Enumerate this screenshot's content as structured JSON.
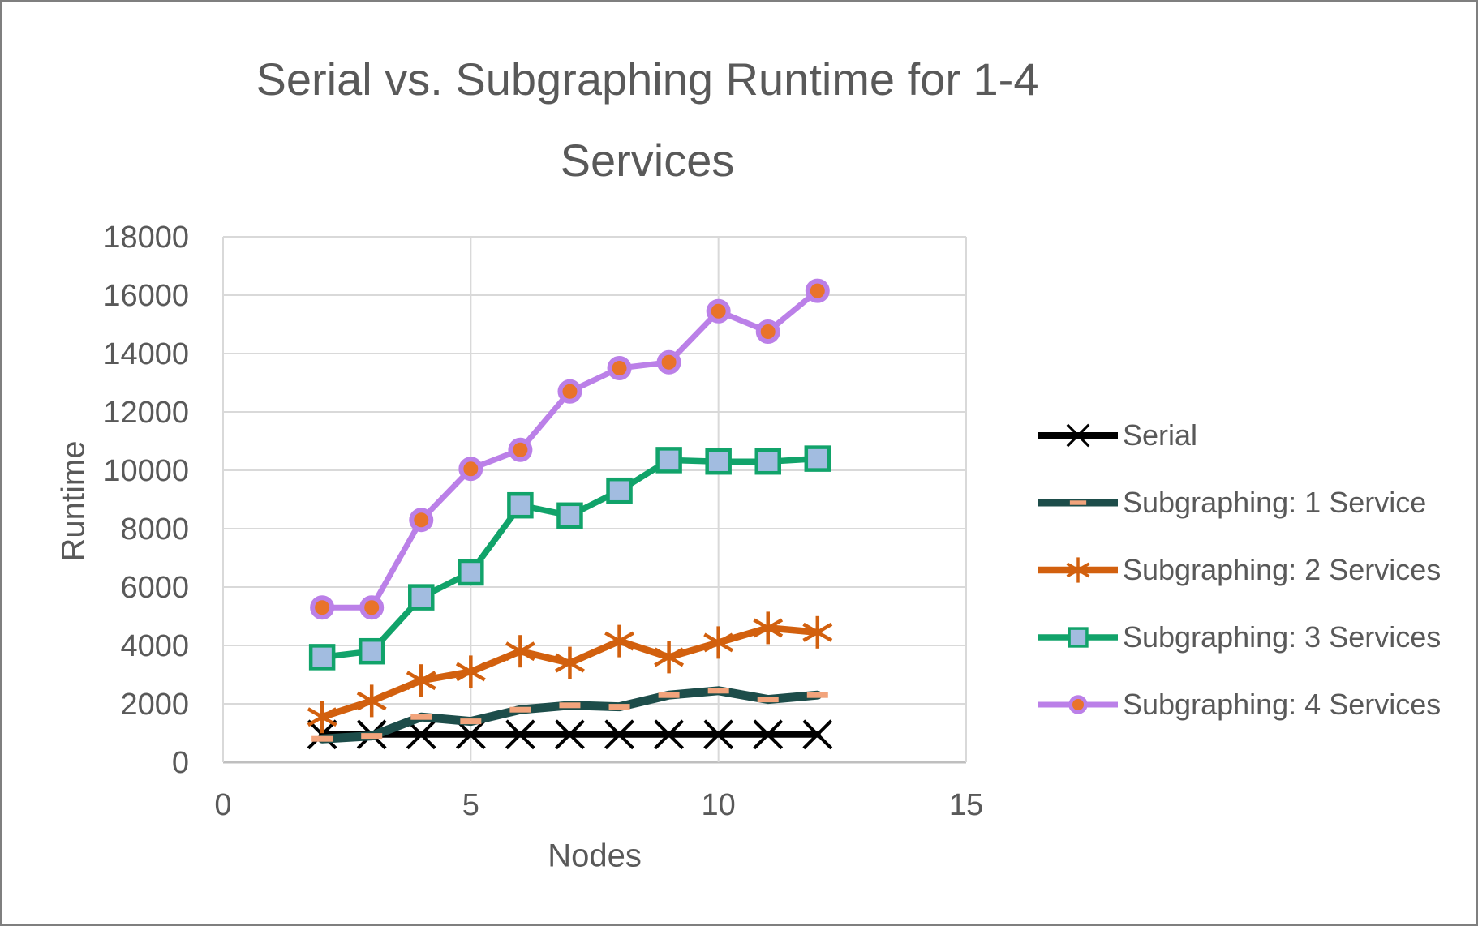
{
  "title": {
    "line1": "Serial vs. Subgraphing Runtime for 1-4",
    "line2": "Services"
  },
  "axes": {
    "y_title": "Runtime",
    "x_title": "Nodes"
  },
  "palette": {
    "text_gray": "#595959",
    "gridline": "#D9D9D9",
    "axis_line": "#BFBFBF",
    "background": "#FFFFFF",
    "frame_border": "#7F7F7F"
  },
  "chart_data": {
    "type": "line",
    "title": "Serial vs. Subgraphing Runtime for 1-4 Services",
    "xlabel": "Nodes",
    "ylabel": "Runtime",
    "xlim": [
      0,
      15
    ],
    "ylim": [
      0,
      18000
    ],
    "x_ticks": [
      0,
      5,
      10,
      15
    ],
    "y_ticks": [
      0,
      2000,
      4000,
      6000,
      8000,
      10000,
      12000,
      14000,
      16000,
      18000
    ],
    "grid": true,
    "legend_position": "right",
    "x": [
      2,
      3,
      4,
      5,
      6,
      7,
      8,
      9,
      10,
      11,
      12
    ],
    "series": [
      {
        "name": "Serial",
        "marker": "x",
        "color": "#000000",
        "marker_color": "#000000",
        "marker_fill": "none",
        "values": [
          950,
          950,
          950,
          950,
          950,
          950,
          950,
          950,
          950,
          950,
          950
        ]
      },
      {
        "name": "Subgraphing: 1 Service",
        "marker": "dash",
        "color": "#1D4D4A",
        "marker_color": "#F2A47C",
        "marker_fill": "#F2A47C",
        "values": [
          800,
          900,
          1550,
          1400,
          1800,
          1950,
          1900,
          2300,
          2450,
          2150,
          2300
        ]
      },
      {
        "name": "Subgraphing: 2 Services",
        "marker": "asterisk",
        "color": "#D2600E",
        "marker_color": "#D2600E",
        "marker_fill": "none",
        "values": [
          1550,
          2100,
          2800,
          3100,
          3800,
          3400,
          4150,
          3600,
          4100,
          4600,
          4450
        ]
      },
      {
        "name": "Subgraphing: 3 Services",
        "marker": "square",
        "color": "#11A36A",
        "marker_color": "#11A36A",
        "marker_fill": "#A2BCE0",
        "values": [
          3600,
          3800,
          5650,
          6500,
          8800,
          8450,
          9300,
          10350,
          10300,
          10300,
          10400
        ]
      },
      {
        "name": "Subgraphing: 4 Services",
        "marker": "circle",
        "color": "#BB80E8",
        "marker_color": "#BB80E8",
        "marker_fill": "#E9732B",
        "values": [
          5300,
          5300,
          8300,
          10050,
          10700,
          12700,
          13500,
          13700,
          15450,
          14750,
          16150
        ]
      }
    ]
  }
}
